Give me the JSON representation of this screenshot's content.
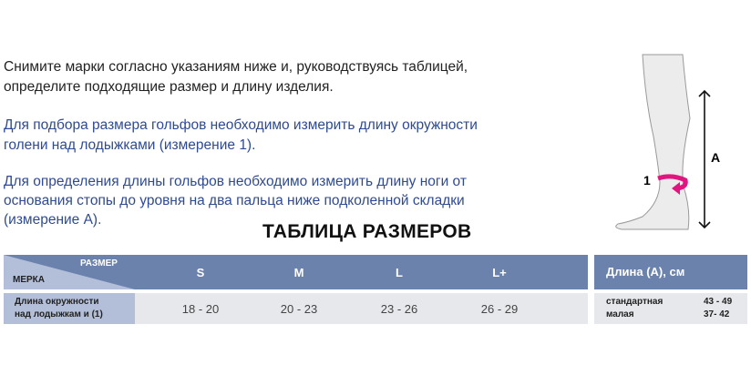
{
  "intro": {
    "line1": "Снимите марки согласно указаниям ниже и, руководствуясь таблицей,",
    "line2": "определите подходящие размер и длину изделия.",
    "circ1": "Для подбора размера гольфов необходимо измерить длину окружности",
    "circ2": "голени над лодыжками (измерение 1).",
    "len1": "Для определения длины гольфов необходимо измерить длину ноги от",
    "len2": "основания стопы до уровня на два пальца ниже подколенной складки",
    "len3": "(измерение А)."
  },
  "figure": {
    "label_circumference": "1",
    "label_length": "A",
    "accent_color": "#e0157f"
  },
  "table": {
    "title": "ТАБЛИЦА РАЗМЕРОВ",
    "corner_top": "РАЗМЕР",
    "corner_bottom": "МЕРКА",
    "sizes": [
      "S",
      "M",
      "L",
      "L+"
    ],
    "row_label_1": "Длина окружности",
    "row_label_2": "над лодыжкам и (1)",
    "values": [
      "18 - 20",
      "20 - 23",
      "23 - 26",
      "26 - 29"
    ],
    "length_header": "Длина (А), см",
    "lengths": [
      {
        "name": "стандартная",
        "value": "43 - 49"
      },
      {
        "name": "малая",
        "value": "37- 42"
      }
    ],
    "colors": {
      "header": "#6b82ad",
      "corner": "#b3bfd9",
      "body": "#e6e8eb"
    }
  }
}
